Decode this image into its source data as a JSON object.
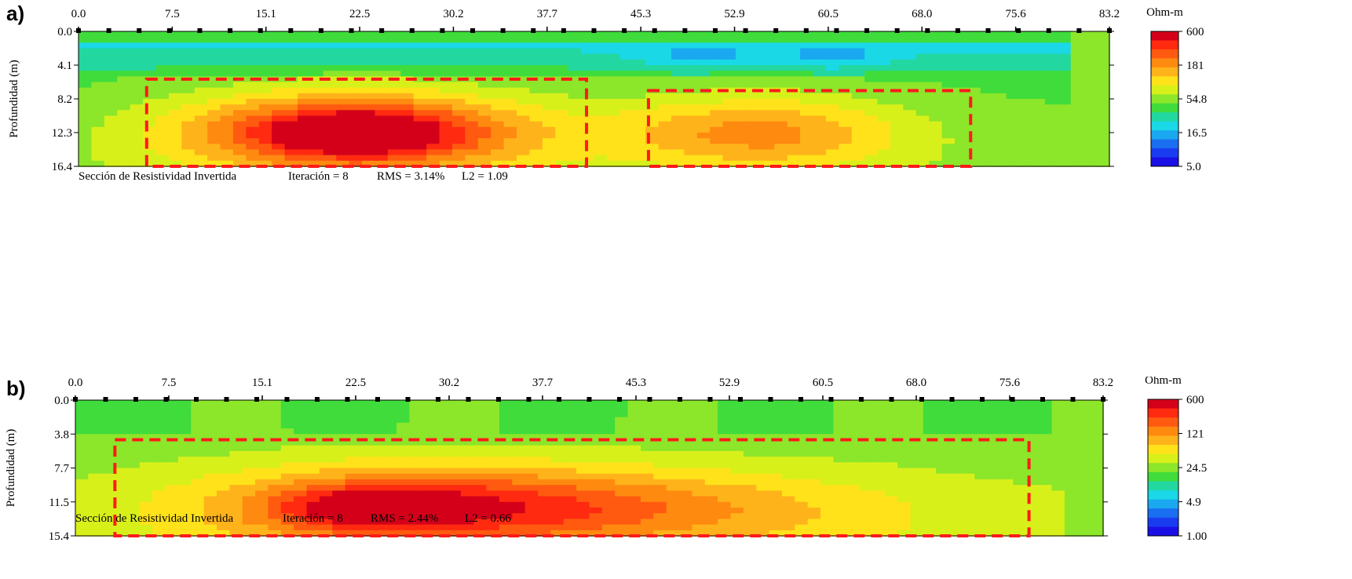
{
  "chart_data": [
    {
      "type": "heatmap",
      "panel_label": "a)",
      "ylabel": "Profundidad (m)",
      "x_ticks": [
        "0.0",
        "7.5",
        "15.1",
        "22.5",
        "30.2",
        "37.7",
        "45.3",
        "52.9",
        "60.5",
        "68.0",
        "75.6",
        "83.2"
      ],
      "y_ticks": [
        "0.0",
        "4.1",
        "8.2",
        "12.3",
        "16.4"
      ],
      "xlim": [
        0,
        83.2
      ],
      "ylim": [
        0,
        16.4
      ],
      "colorbar": {
        "title": "Ohm-m",
        "ticks": [
          "600",
          "181",
          "54.8",
          "16.5",
          "5.0"
        ]
      },
      "caption": {
        "section": "Sección de Resistividad Invertida",
        "iteration": "Iteración = 8",
        "rms": "RMS = 3.14%",
        "l2": "L2 = 1.09"
      },
      "highlight_boxes": [
        {
          "x": [
            5.5,
            41.0
          ],
          "y": [
            5.8,
            16.4
          ]
        },
        {
          "x": [
            46.0,
            72.0
          ],
          "y": [
            7.2,
            16.4
          ]
        }
      ],
      "colors": {
        "highlight": "#ff1a1a"
      }
    },
    {
      "type": "heatmap",
      "panel_label": "b)",
      "ylabel": "Profundidad (m)",
      "x_ticks": [
        "0.0",
        "7.5",
        "15.1",
        "22.5",
        "30.2",
        "37.7",
        "45.3",
        "52.9",
        "60.5",
        "68.0",
        "75.6",
        "83.2"
      ],
      "y_ticks": [
        "0.0",
        "3.8",
        "7.7",
        "11.5",
        "15.4"
      ],
      "xlim": [
        0,
        83.2
      ],
      "ylim": [
        0,
        15.4
      ],
      "colorbar": {
        "title": "Ohm-m",
        "ticks": [
          "600",
          "121",
          "24.5",
          "4.9",
          "1.00"
        ]
      },
      "caption": {
        "section": "Sección de Resistividad Invertida",
        "iteration": "Iteración = 8",
        "rms": "RMS = 2.44%",
        "l2": "L2 = 0.66"
      },
      "highlight_boxes": [
        {
          "x": [
            3.2,
            77.2
          ],
          "y": [
            4.5,
            15.4
          ]
        }
      ],
      "colors": {
        "highlight": "#ff1a1a"
      }
    }
  ]
}
